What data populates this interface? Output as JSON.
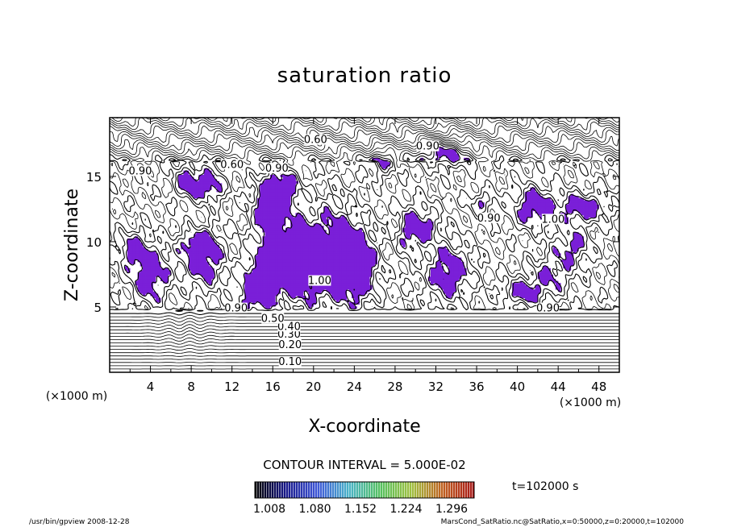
{
  "chart_data": {
    "type": "contour",
    "title": "saturation ratio",
    "xlabel": "X-coordinate",
    "ylabel": "Z-coordinate",
    "x_unit": "(×1000 m)",
    "z_unit": "(×1000 m)",
    "xlim": [
      0,
      50
    ],
    "ylim": [
      0,
      19.5
    ],
    "x_ticks": [
      4,
      8,
      12,
      16,
      20,
      24,
      28,
      32,
      36,
      40,
      44,
      48
    ],
    "y_ticks": [
      5,
      10,
      15
    ],
    "contour_interval_label": "CONTOUR INTERVAL = 5.000E-02",
    "contour_labels": [
      {
        "text": "0.10",
        "x": 17.7,
        "z": 0.8
      },
      {
        "text": "0.20",
        "x": 17.7,
        "z": 2.1
      },
      {
        "text": "0.30",
        "x": 17.6,
        "z": 2.9
      },
      {
        "text": "0.40",
        "x": 17.6,
        "z": 3.5
      },
      {
        "text": "0.50",
        "x": 16.0,
        "z": 4.1
      },
      {
        "text": "0.90",
        "x": 12.4,
        "z": 4.9
      },
      {
        "text": "0.90",
        "x": 43.0,
        "z": 4.9
      },
      {
        "text": "0.60",
        "x": 20.2,
        "z": 17.8
      },
      {
        "text": "0.60",
        "x": 12.0,
        "z": 15.9
      },
      {
        "text": "0.90",
        "x": 16.4,
        "z": 15.6
      },
      {
        "text": "0.90",
        "x": 3.0,
        "z": 15.4
      },
      {
        "text": "0.90",
        "x": 31.2,
        "z": 17.3
      },
      {
        "text": "0.90",
        "x": 37.2,
        "z": 11.8
      },
      {
        "text": "1.00",
        "x": 43.5,
        "z": 11.7
      },
      {
        "text": "1.00",
        "x": 20.6,
        "z": 7.0
      }
    ],
    "fill_threshold": 1.0,
    "colorbar": {
      "ticks": [
        "1.008",
        "1.080",
        "1.152",
        "1.224",
        "1.296"
      ],
      "colors": [
        "#000000",
        "#1a1a8c",
        "#3f58d8",
        "#4bb4c8",
        "#55c060",
        "#a0c040",
        "#c06020",
        "#a81818"
      ]
    },
    "supersaturated_fill_color": "#7a1fd8",
    "time_label": "t=102000 s"
  },
  "footer": {
    "left": "/usr/bin/gpview   2008-12-28",
    "right": "MarsCond_SatRatio.nc@SatRatio,x=0:50000,z=0:20000,t=102000"
  }
}
